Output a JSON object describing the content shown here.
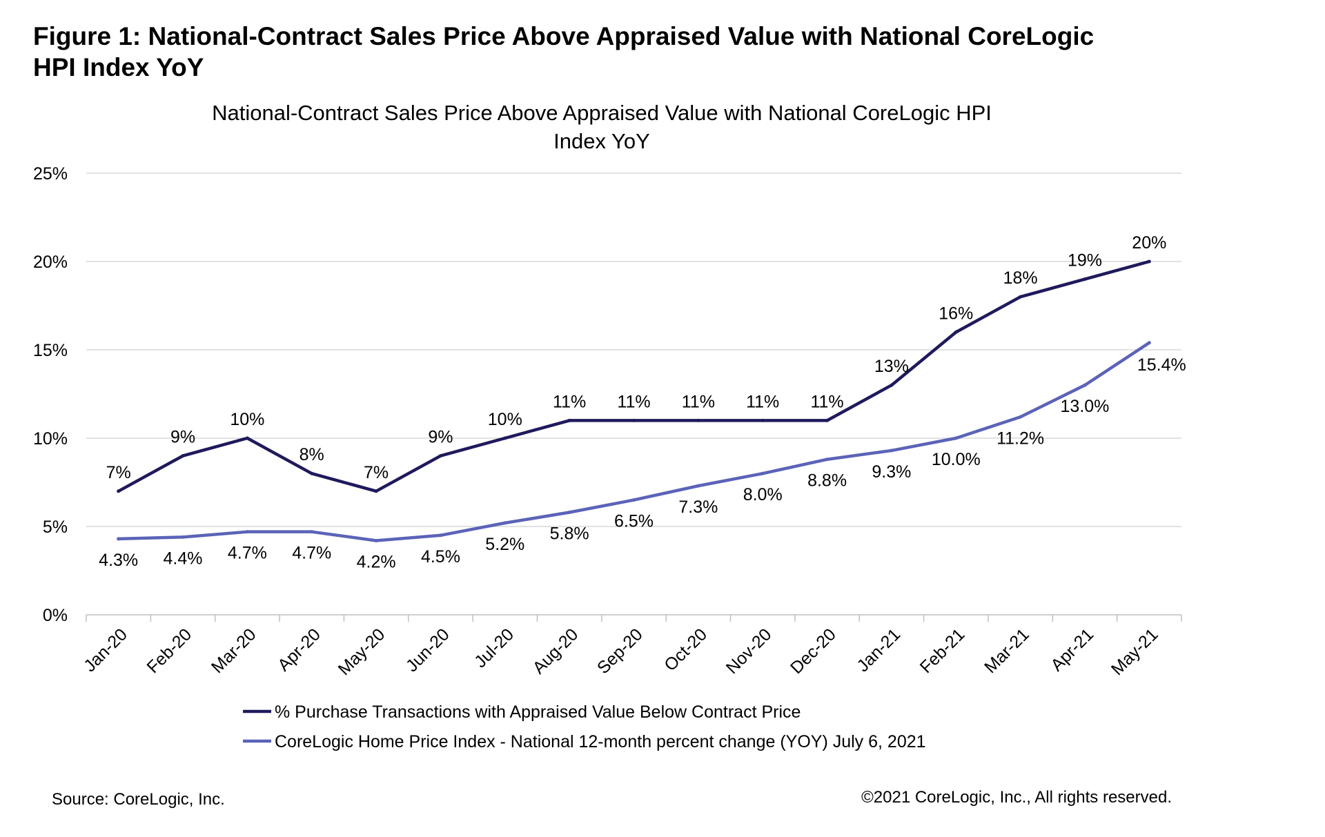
{
  "figure": {
    "title_line1": "Figure 1: National-Contract Sales Price Above Appraised Value with National CoreLogic",
    "title_line2": "HPI Index YoY"
  },
  "chart_data": {
    "type": "line",
    "title_line1": "National-Contract Sales Price Above Appraised Value with National CoreLogic HPI",
    "title_line2": "Index YoY",
    "categories": [
      "Jan-20",
      "Feb-20",
      "Mar-20",
      "Apr-20",
      "May-20",
      "Jun-20",
      "Jul-20",
      "Aug-20",
      "Sep-20",
      "Oct-20",
      "Nov-20",
      "Dec-20",
      "Jan-21",
      "Feb-21",
      "Mar-21",
      "Apr-21",
      "May-21"
    ],
    "ylim": [
      0,
      25
    ],
    "yticks": [
      0,
      5,
      10,
      15,
      20,
      25
    ],
    "ytick_labels": [
      "0%",
      "5%",
      "10%",
      "15%",
      "20%",
      "25%"
    ],
    "grid": true,
    "legend_position": "bottom",
    "series": [
      {
        "name": "% Purchase Transactions with Appraised Value Below Contract Price",
        "color": "#1f1a5c",
        "values": [
          7,
          9,
          10,
          8,
          7,
          9,
          10,
          11,
          11,
          11,
          11,
          11,
          13,
          16,
          18,
          19,
          20
        ],
        "labels": [
          "7%",
          "9%",
          "10%",
          "8%",
          "7%",
          "9%",
          "10%",
          "11%",
          "11%",
          "11%",
          "11%",
          "11%",
          "13%",
          "16%",
          "18%",
          "19%",
          "20%"
        ],
        "label_position": "above"
      },
      {
        "name": "CoreLogic Home Price Index - National 12-month percent change (YOY) July 6, 2021",
        "color": "#5b63b8",
        "values": [
          4.3,
          4.4,
          4.7,
          4.7,
          4.2,
          4.5,
          5.2,
          5.8,
          6.5,
          7.3,
          8.0,
          8.8,
          9.3,
          10.0,
          11.2,
          13.0,
          15.4
        ],
        "labels": [
          "4.3%",
          "4.4%",
          "4.7%",
          "4.7%",
          "4.2%",
          "4.5%",
          "5.2%",
          "5.8%",
          "6.5%",
          "7.3%",
          "8.0%",
          "8.8%",
          "9.3%",
          "10.0%",
          "11.2%",
          "13.0%",
          "15.4%"
        ],
        "label_position": "below"
      }
    ]
  },
  "footer": {
    "source": "Source: CoreLogic, Inc.",
    "copyright": "©2021 CoreLogic, Inc., All rights reserved."
  }
}
